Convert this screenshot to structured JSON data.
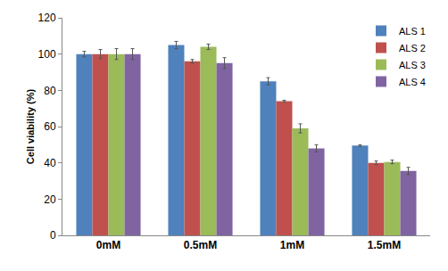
{
  "chart_data": {
    "type": "bar",
    "y_label": "Cell viability (%)",
    "categories": [
      "0mM",
      "0.5mM",
      "1mM",
      "1.5mM"
    ],
    "series": [
      {
        "name": "ALS 1",
        "color": "#4f81bd",
        "values": [
          100,
          105,
          85,
          49.5
        ],
        "errors": [
          1.5,
          2,
          2,
          0.5
        ]
      },
      {
        "name": "ALS 2",
        "color": "#c0504d",
        "values": [
          100,
          96,
          74,
          40
        ],
        "errors": [
          2.5,
          1,
          0.5,
          1
        ]
      },
      {
        "name": "ALS 3",
        "color": "#9bbb59",
        "values": [
          100,
          104,
          59,
          40.5
        ],
        "errors": [
          3,
          1.5,
          2.5,
          1
        ]
      },
      {
        "name": "ALS 4",
        "color": "#8064a2",
        "values": [
          100,
          95,
          48,
          35.5
        ],
        "errors": [
          3,
          3,
          2,
          2
        ]
      }
    ],
    "ylim": [
      0,
      120
    ],
    "yticks": [
      0,
      20,
      40,
      60,
      80,
      100,
      120
    ],
    "grid": false,
    "legend": "top-right"
  }
}
